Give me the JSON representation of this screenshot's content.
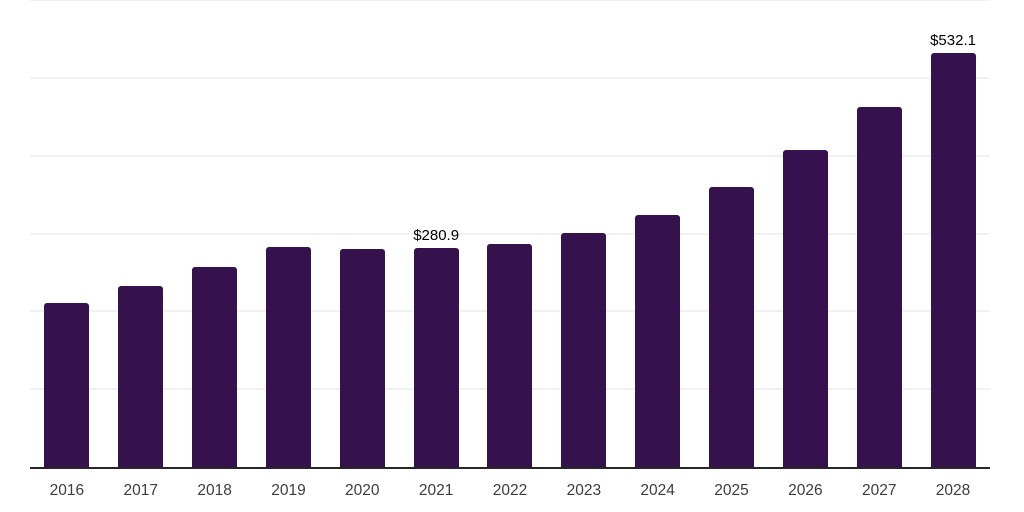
{
  "chart_data": {
    "type": "bar",
    "title": "",
    "xlabel": "",
    "ylabel": "",
    "categories": [
      "2016",
      "2017",
      "2018",
      "2019",
      "2020",
      "2021",
      "2022",
      "2023",
      "2024",
      "2025",
      "2026",
      "2027",
      "2028"
    ],
    "values": [
      211.0,
      232.8,
      256.9,
      283.2,
      280.3,
      280.9,
      287.1,
      300.8,
      324.0,
      360.2,
      407.5,
      463.0,
      532.1
    ],
    "point_labels": [
      "",
      "",
      "",
      "",
      "",
      "$280.9",
      "",
      "",
      "",
      "",
      "",
      "",
      "$532.1"
    ],
    "ylim": [
      0,
      600
    ],
    "gridline_interval": 100,
    "grid": true,
    "legend": "none",
    "y_axis_labels_visible": false,
    "currency_prefix": "$"
  },
  "style": {
    "bar_color": "#35114e",
    "gridline_color": "#f1f1f3",
    "axis_line_color": "#27272a",
    "tick_label_color": "#3d3d3d",
    "value_label_color": "#000000",
    "background_color": "#ffffff"
  }
}
